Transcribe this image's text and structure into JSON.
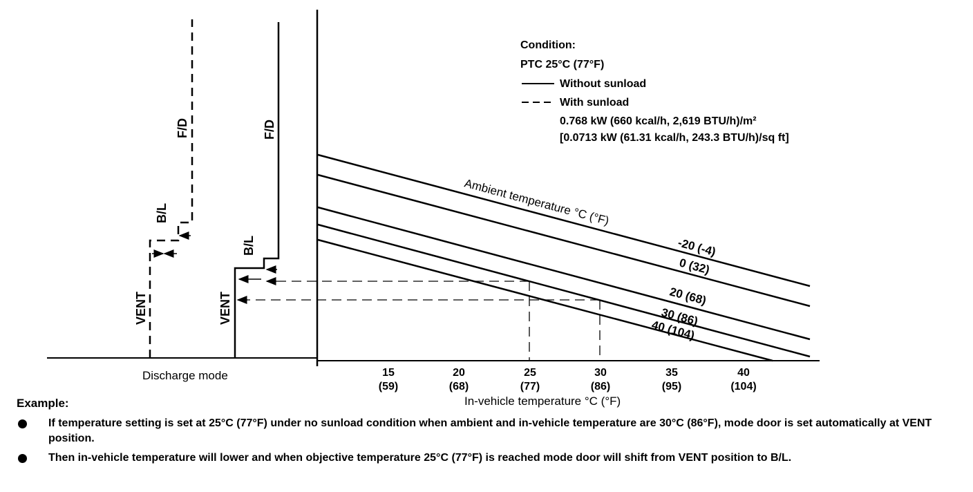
{
  "condition": {
    "heading": "Condition:",
    "ptc": "PTC 25°C (77°F)",
    "legend_solid": "Without sunload",
    "legend_dashed": "With sunload",
    "sunload_line1": "0.768 kW (660 kcal/h, 2,619 BTU/h)/m²",
    "sunload_line2": "[0.0713 kW (61.31 kcal/h, 243.3 BTU/h)/sq ft]"
  },
  "mode_labels": {
    "fd_dashed": "F/D",
    "bl_dashed": "B/L",
    "vent_dashed": "VENT",
    "fd_solid": "F/D",
    "bl_solid": "B/L",
    "vent_solid": "VENT",
    "discharge_mode": "Discharge mode"
  },
  "chart_data": {
    "type": "line",
    "xlabel": "In-vehicle temperature °C (°F)",
    "x_ticks": [
      {
        "c": "15",
        "f": "(59)"
      },
      {
        "c": "20",
        "f": "(68)"
      },
      {
        "c": "25",
        "f": "(77)"
      },
      {
        "c": "30",
        "f": "(86)"
      },
      {
        "c": "35",
        "f": "(95)"
      },
      {
        "c": "40",
        "f": "(104)"
      }
    ],
    "series_title": "Ambient temperature °C (°F)",
    "series": [
      {
        "name": "-20 (-4)"
      },
      {
        "name": "0 (32)"
      },
      {
        "name": "20 (68)"
      },
      {
        "name": "30 (86)"
      },
      {
        "name": "40 (104)"
      }
    ]
  },
  "example": {
    "heading": "Example:",
    "bullets": [
      "If temperature setting is set at 25°C (77°F) under no sunload condition when ambient and in-vehicle temperature are 30°C (86°F), mode door is set automatically at VENT position.",
      "Then in-vehicle temperature will lower and when objective temperature 25°C (77°F) is reached mode door will shift from VENT position to B/L."
    ]
  }
}
